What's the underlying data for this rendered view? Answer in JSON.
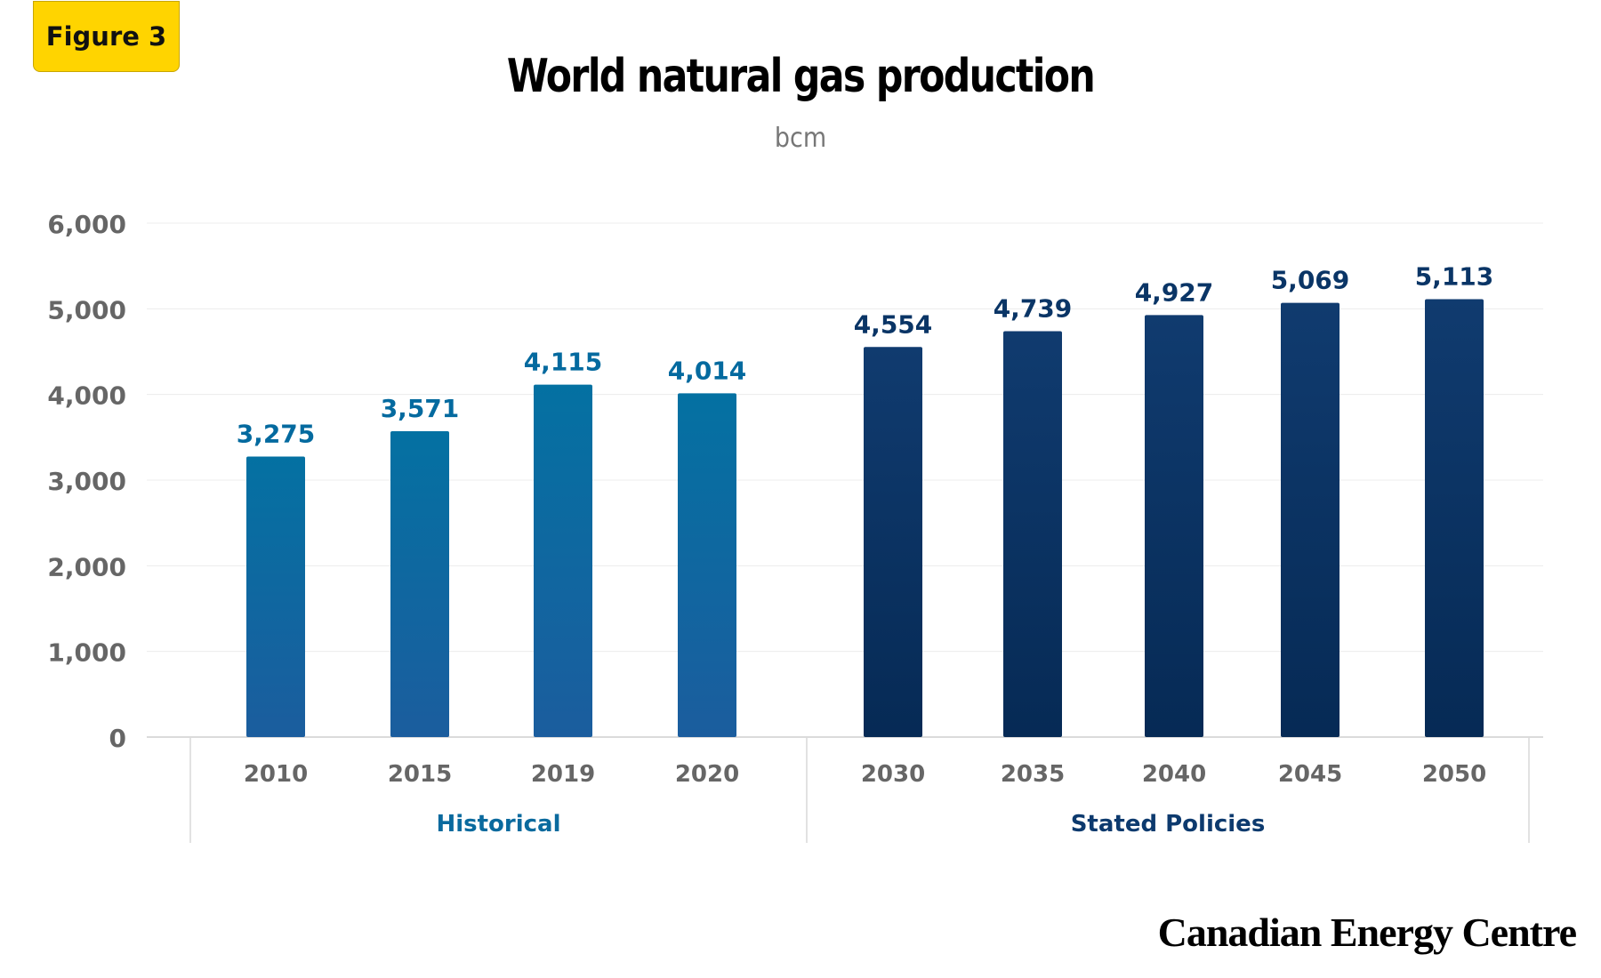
{
  "badge": "Figure 3",
  "brand": "Canadian Energy Centre",
  "colors": {
    "historical": "#046a9f",
    "stated": "#0a3566",
    "historical_label": "#0a6a9e",
    "stated_label": "#0d3a6e",
    "tick_label": "#666666",
    "grid": "#ececec"
  },
  "chart_data": {
    "type": "bar",
    "title": "World natural gas production",
    "subtitle": "bcm",
    "ylim": [
      0,
      6000
    ],
    "yticks": [
      "0",
      "1,000",
      "2,000",
      "3,000",
      "4,000",
      "5,000",
      "6,000"
    ],
    "grid": true,
    "groups": [
      {
        "name": "Historical",
        "categories": [
          "2010",
          "2015",
          "2019",
          "2020"
        ],
        "values": [
          3275,
          3571,
          4115,
          4014
        ],
        "labels": [
          "3,275",
          "3,571",
          "4,115",
          "4,014"
        ]
      },
      {
        "name": "Stated Policies",
        "categories": [
          "2030",
          "2035",
          "2040",
          "2045",
          "2050"
        ],
        "values": [
          4554,
          4739,
          4927,
          5069,
          5113
        ],
        "labels": [
          "4,554",
          "4,739",
          "4,927",
          "5,069",
          "5,113"
        ]
      }
    ]
  }
}
